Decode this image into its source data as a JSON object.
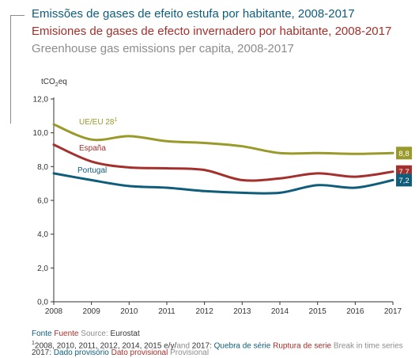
{
  "titles": {
    "pt": "Emissões de gases de efeito estufa por habitante, 2008-2017",
    "es": "Emisiones de gases de efecto invernadero por habitante, 2008-2017",
    "en": "Greenhouse gas emissions per capita, 2008-2017"
  },
  "colors": {
    "eu": "#9a9a2a",
    "spain": "#a3302c",
    "portugal": "#0f5d7a",
    "axis": "#333333",
    "grid": "#d9d9d9",
    "title_pt": "#0f5d7a",
    "title_es": "#a3302c",
    "title_en": "#8c8c8c"
  },
  "chart_data": {
    "type": "line",
    "ylabel_main": "tCO",
    "ylabel_sub": "2",
    "ylabel_end": "eq",
    "x": [
      "2008",
      "2009",
      "2010",
      "2011",
      "2012",
      "2013",
      "2014",
      "2015",
      "2016",
      "2017"
    ],
    "ylim": [
      0,
      12
    ],
    "yticks": [
      "0,0",
      "2,0",
      "4,0",
      "6,0",
      "8,0",
      "10,0",
      "12,0"
    ],
    "ytick_values": [
      0,
      2,
      4,
      6,
      8,
      10,
      12
    ],
    "grid": false,
    "series": [
      {
        "key": "eu",
        "name": "UE/EU 28",
        "name_sup": "1",
        "values": [
          10.5,
          9.6,
          9.8,
          9.5,
          9.4,
          9.2,
          8.8,
          8.8,
          8.75,
          8.8
        ],
        "end_label": "8,8"
      },
      {
        "key": "spain",
        "name": "España",
        "name_sup": "",
        "values": [
          9.3,
          8.3,
          7.95,
          7.9,
          7.8,
          7.2,
          7.3,
          7.6,
          7.4,
          7.7
        ],
        "end_label": "7,7"
      },
      {
        "key": "portugal",
        "name": "Portugal",
        "name_sup": "",
        "values": [
          7.6,
          7.2,
          6.85,
          6.75,
          6.55,
          6.45,
          6.45,
          6.9,
          6.75,
          7.2
        ],
        "end_label": "7,2"
      }
    ]
  },
  "footer": {
    "fonte_pt": "Fonte",
    "fonte_es": "Fuente",
    "fonte_en": "Source:",
    "fonte_value": "Eurostat",
    "note_sup": "1",
    "note_years": "2008, 2010, 2011, 2012, 2014, 2015 e/y/",
    "note_and": "and",
    "note_2017": "2017:",
    "break_pt": "Quebra de série",
    "break_es": "Ruptura de serie",
    "break_en": "Break in time series",
    "prov_year": "2017:",
    "prov_pt": "Dado provisório",
    "prov_es": "Dato provisional",
    "prov_en": "Provisional"
  }
}
